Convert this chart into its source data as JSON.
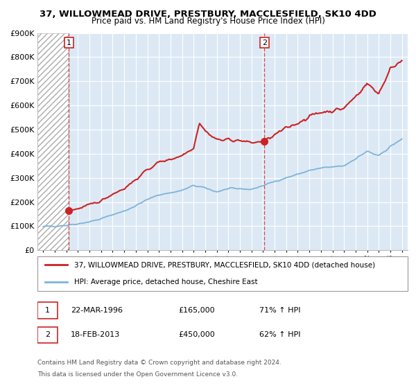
{
  "title1": "37, WILLOWMEAD DRIVE, PRESTBURY, MACCLESFIELD, SK10 4DD",
  "title2": "Price paid vs. HM Land Registry's House Price Index (HPI)",
  "sale1_date": 1996.22,
  "sale1_price": 165000,
  "sale2_date": 2013.12,
  "sale2_price": 450000,
  "legend1": "37, WILLOWMEAD DRIVE, PRESTBURY, MACCLESFIELD, SK10 4DD (detached house)",
  "legend2": "HPI: Average price, detached house, Cheshire East",
  "sale1_text": "22-MAR-1996",
  "sale1_amount": "£165,000",
  "sale1_hpi": "71% ↑ HPI",
  "sale2_text": "18-FEB-2013",
  "sale2_amount": "£450,000",
  "sale2_hpi": "62% ↑ HPI",
  "footnote1": "Contains HM Land Registry data © Crown copyright and database right 2024.",
  "footnote2": "This data is licensed under the Open Government Licence v3.0.",
  "red_color": "#cc2222",
  "blue_color": "#7eb3d8",
  "bg_color": "#dce9f5",
  "ylim": [
    0,
    900000
  ],
  "xlim_start": 1993.5,
  "xlim_end": 2025.5,
  "hpi_years": [
    1994,
    1995,
    1996,
    1997,
    1998,
    1999,
    2000,
    2001,
    2002,
    2003,
    2004,
    2005,
    2006,
    2007,
    2008,
    2009,
    2010,
    2011,
    2012,
    2013,
    2014,
    2015,
    2016,
    2017,
    2018,
    2019,
    2020,
    2021,
    2022,
    2023,
    2024,
    2025
  ],
  "hpi_values": [
    98000,
    100000,
    104000,
    110000,
    118000,
    130000,
    148000,
    162000,
    185000,
    210000,
    230000,
    238000,
    248000,
    268000,
    258000,
    242000,
    255000,
    255000,
    252000,
    268000,
    285000,
    300000,
    315000,
    330000,
    340000,
    345000,
    350000,
    380000,
    410000,
    390000,
    430000,
    460000
  ],
  "red_years1": [
    1996.22,
    1997,
    1998,
    1999,
    2000,
    2001,
    2002,
    2003,
    2004,
    2005,
    2006,
    2007,
    2007.5,
    2008,
    2008.5,
    2009,
    2009.5,
    2010,
    2010.5,
    2011,
    2011.5,
    2012,
    2012.5,
    2013.12
  ],
  "red_vals1": [
    165000,
    172000,
    187000,
    205000,
    234000,
    256000,
    293000,
    333000,
    365000,
    377000,
    393000,
    425000,
    530000,
    495000,
    475000,
    460000,
    455000,
    460000,
    455000,
    455000,
    450000,
    445000,
    448000,
    450000
  ],
  "red_years2": [
    2013.12,
    2014,
    2015,
    2016,
    2017,
    2018,
    2019,
    2020,
    2021,
    2022,
    2023,
    2024,
    2025
  ],
  "red_vals2": [
    450000,
    477000,
    505000,
    528000,
    554000,
    572000,
    578000,
    588000,
    638000,
    690000,
    650000,
    750000,
    790000
  ]
}
